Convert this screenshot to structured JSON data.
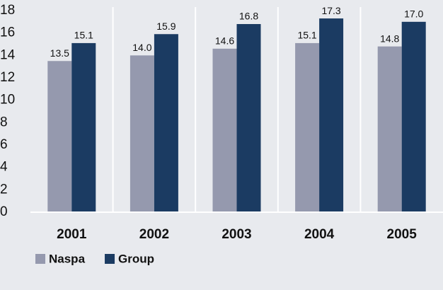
{
  "chart_data": {
    "type": "bar",
    "categories": [
      "2001",
      "2002",
      "2003",
      "2004",
      "2005"
    ],
    "series": [
      {
        "name": "Naspa",
        "color": "#9599ae",
        "values": [
          13.5,
          14.0,
          14.6,
          15.1,
          14.8
        ],
        "value_labels": [
          "13.5",
          "14.0",
          "14.6",
          "15.1",
          "14.8"
        ]
      },
      {
        "name": "Group",
        "color": "#1b3b62",
        "values": [
          15.1,
          15.9,
          16.8,
          17.3,
          17.0
        ],
        "value_labels": [
          "15.1",
          "15.9",
          "16.8",
          "17.3",
          "17.0"
        ]
      }
    ],
    "ylim": [
      0,
      18
    ],
    "yticks": [
      0,
      2,
      4,
      6,
      8,
      10,
      12,
      14,
      16,
      18
    ],
    "legend": "bottom-left"
  }
}
